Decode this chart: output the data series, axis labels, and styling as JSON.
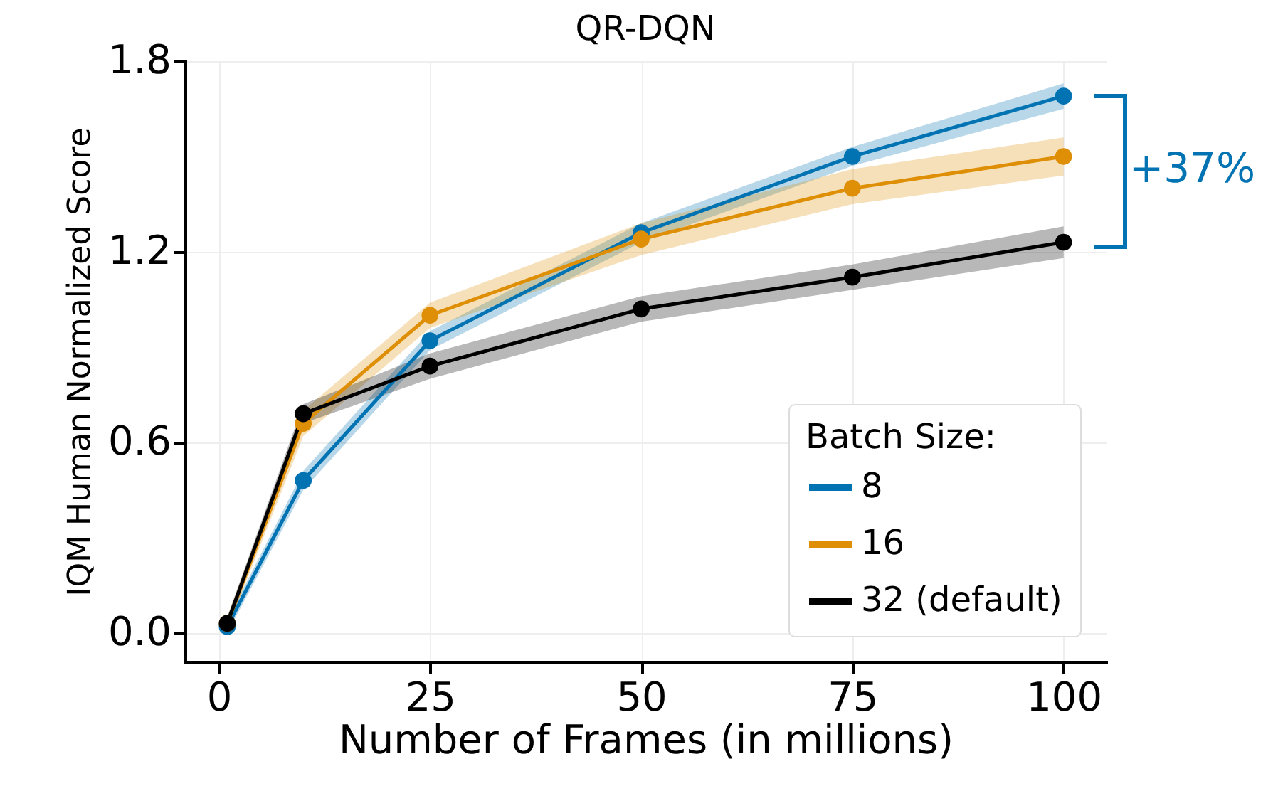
{
  "chart_data": {
    "type": "line",
    "title": "QR-DQN",
    "xlabel": "Number of Frames (in millions)",
    "ylabel": "IQM Human Normalized Score",
    "legend_title": "Batch Size:",
    "x": [
      1,
      10,
      25,
      50,
      75,
      100
    ],
    "series": [
      {
        "name": "8",
        "color": "#0173b2",
        "values": [
          0.02,
          0.48,
          0.92,
          1.26,
          1.5,
          1.69
        ],
        "lower": [
          0.0,
          0.45,
          0.89,
          1.23,
          1.47,
          1.65
        ],
        "upper": [
          0.04,
          0.51,
          0.95,
          1.29,
          1.53,
          1.73
        ]
      },
      {
        "name": "16",
        "color": "#de8f05",
        "values": [
          0.03,
          0.66,
          1.0,
          1.24,
          1.4,
          1.5
        ],
        "lower": [
          0.01,
          0.62,
          0.96,
          1.19,
          1.35,
          1.44
        ],
        "upper": [
          0.05,
          0.7,
          1.04,
          1.29,
          1.46,
          1.56
        ]
      },
      {
        "name": "32 (default)",
        "color": "#000000",
        "values": [
          0.03,
          0.69,
          0.84,
          1.02,
          1.12,
          1.23
        ],
        "lower": [
          0.01,
          0.66,
          0.8,
          0.98,
          1.08,
          1.18
        ],
        "upper": [
          0.05,
          0.72,
          0.88,
          1.06,
          1.16,
          1.28
        ]
      }
    ],
    "xlim": [
      -4,
      105
    ],
    "ylim": [
      -0.09,
      1.8
    ],
    "xticks": [
      0,
      25,
      50,
      75,
      100
    ],
    "yticks": [
      {
        "value": 0,
        "label": "0.0"
      },
      {
        "value": 0.6,
        "label": "0.6"
      },
      {
        "value": 1.2,
        "label": "1.2"
      },
      {
        "value": 1.8,
        "label": "1.8"
      }
    ],
    "grid": true,
    "legend": "bottom right",
    "marker": "circle",
    "line_style": "solid",
    "annotations": [
      "+37%"
    ]
  }
}
